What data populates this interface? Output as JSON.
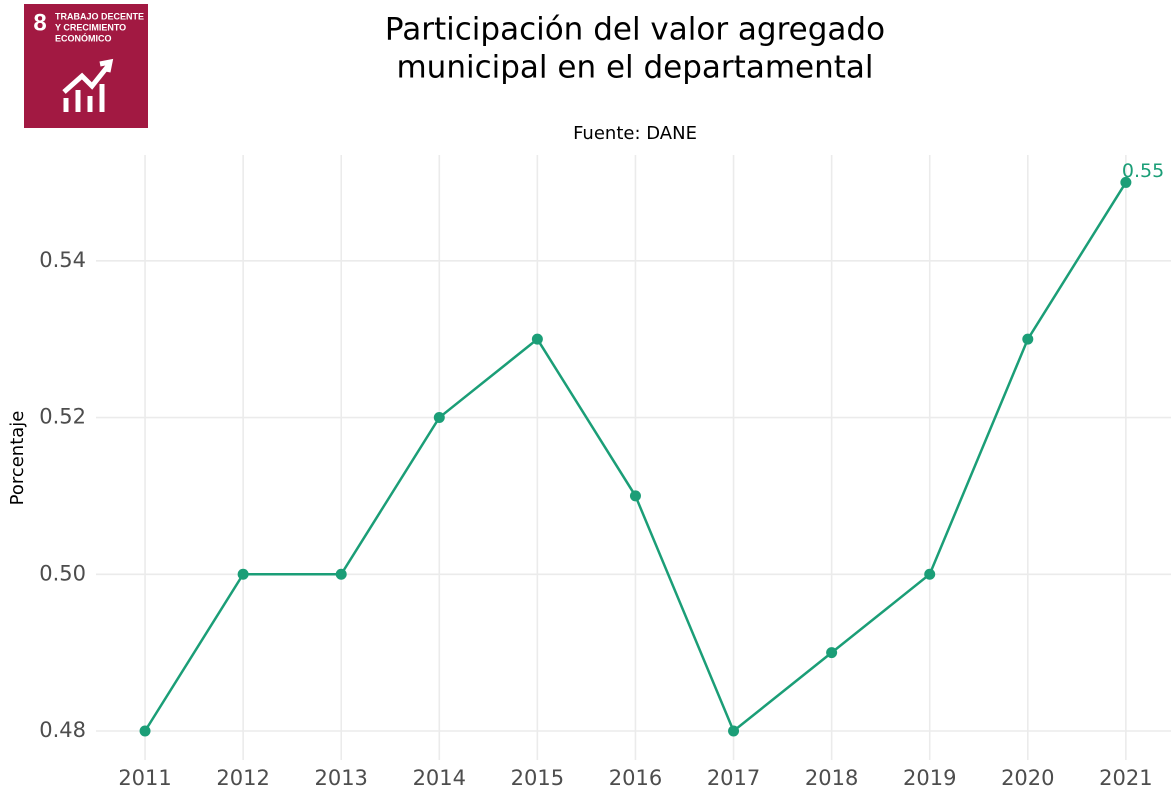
{
  "logo": {
    "number": "8",
    "lines": [
      "TRABAJO DECENTE",
      "Y CRECIMIENTO",
      "ECONÓMICO"
    ]
  },
  "chart_data": {
    "type": "line",
    "title": [
      "Participación del valor agregado",
      "municipal en el departamental"
    ],
    "subtitle": "Fuente: DANE",
    "y_label": "Porcentaje",
    "x": [
      2011,
      2012,
      2013,
      2014,
      2015,
      2016,
      2017,
      2018,
      2019,
      2020,
      2021
    ],
    "values": [
      0.48,
      0.5,
      0.5,
      0.52,
      0.53,
      0.51,
      0.48,
      0.49,
      0.5,
      0.53,
      0.55
    ],
    "color": "#1b9e77",
    "last_value_label": "0.55",
    "xlim": [
      2010.5,
      2021.46
    ],
    "xticks": [
      2011,
      2012,
      2013,
      2014,
      2015,
      2016,
      2017,
      2018,
      2019,
      2020,
      2021
    ],
    "ylim": [
      0.4763,
      0.5535
    ],
    "yticks": [
      0.48,
      {
        "value": 0.5,
        "label": "0.50"
      },
      0.52,
      0.54
    ],
    "grid": true
  }
}
